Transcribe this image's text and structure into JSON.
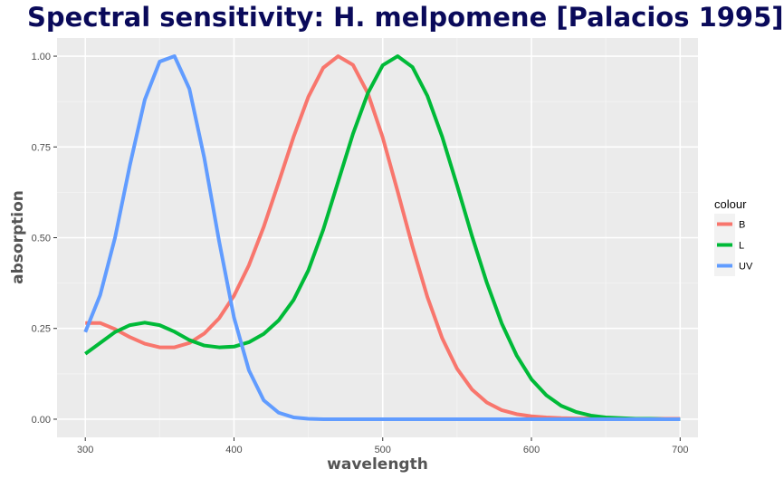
{
  "chart_data": {
    "type": "line",
    "title": "Spectral sensitivity: H. melpomene [Palacios 1995]",
    "xlabel": "wavelength",
    "ylabel": "absorption",
    "xlim": [
      281,
      712
    ],
    "ylim": [
      -0.05,
      1.05
    ],
    "x_ticks": [
      "300",
      "400",
      "500",
      "600",
      "700"
    ],
    "y_ticks": [
      "0.00",
      "0.25",
      "0.50",
      "0.75",
      "1.00"
    ],
    "grid": true,
    "legend_position": "right",
    "legend_title": "colour",
    "x": [
      300,
      310,
      320,
      330,
      340,
      350,
      360,
      370,
      380,
      390,
      400,
      410,
      420,
      430,
      440,
      450,
      460,
      470,
      480,
      490,
      500,
      510,
      520,
      530,
      540,
      550,
      560,
      570,
      580,
      590,
      600,
      610,
      620,
      630,
      640,
      650,
      660,
      670,
      680,
      690,
      700
    ],
    "series": [
      {
        "name": "B",
        "color": "#f8766d",
        "values": [
          0.265,
          0.265,
          0.248,
          0.226,
          0.208,
          0.198,
          0.198,
          0.21,
          0.236,
          0.278,
          0.34,
          0.424,
          0.53,
          0.652,
          0.777,
          0.888,
          0.968,
          1.0,
          0.976,
          0.898,
          0.776,
          0.628,
          0.476,
          0.337,
          0.223,
          0.139,
          0.082,
          0.046,
          0.025,
          0.014,
          0.008,
          0.005,
          0.003,
          0.002,
          0.002,
          0.001,
          0.001,
          0.001,
          0.001,
          0.001,
          0.001
        ]
      },
      {
        "name": "L",
        "color": "#00ba38",
        "values": [
          0.18,
          0.21,
          0.24,
          0.259,
          0.266,
          0.259,
          0.241,
          0.218,
          0.203,
          0.198,
          0.2,
          0.212,
          0.235,
          0.272,
          0.328,
          0.41,
          0.522,
          0.654,
          0.786,
          0.898,
          0.975,
          1.0,
          0.97,
          0.891,
          0.778,
          0.644,
          0.505,
          0.376,
          0.264,
          0.176,
          0.11,
          0.066,
          0.037,
          0.02,
          0.01,
          0.005,
          0.003,
          0.001,
          0.001,
          0.0,
          0.0
        ]
      },
      {
        "name": "UV",
        "color": "#619cff",
        "values": [
          0.24,
          0.342,
          0.5,
          0.7,
          0.88,
          0.985,
          1.0,
          0.91,
          0.72,
          0.49,
          0.28,
          0.135,
          0.052,
          0.018,
          0.005,
          0.001,
          0.0,
          0.0,
          0.0,
          0.0,
          0.0,
          0.0,
          0.0,
          0.0,
          0.0,
          0.0,
          0.0,
          0.0,
          0.0,
          0.0,
          0.0,
          0.0,
          0.0,
          0.0,
          0.0,
          0.0,
          0.0,
          0.0,
          0.0,
          0.0,
          0.0
        ]
      }
    ]
  }
}
